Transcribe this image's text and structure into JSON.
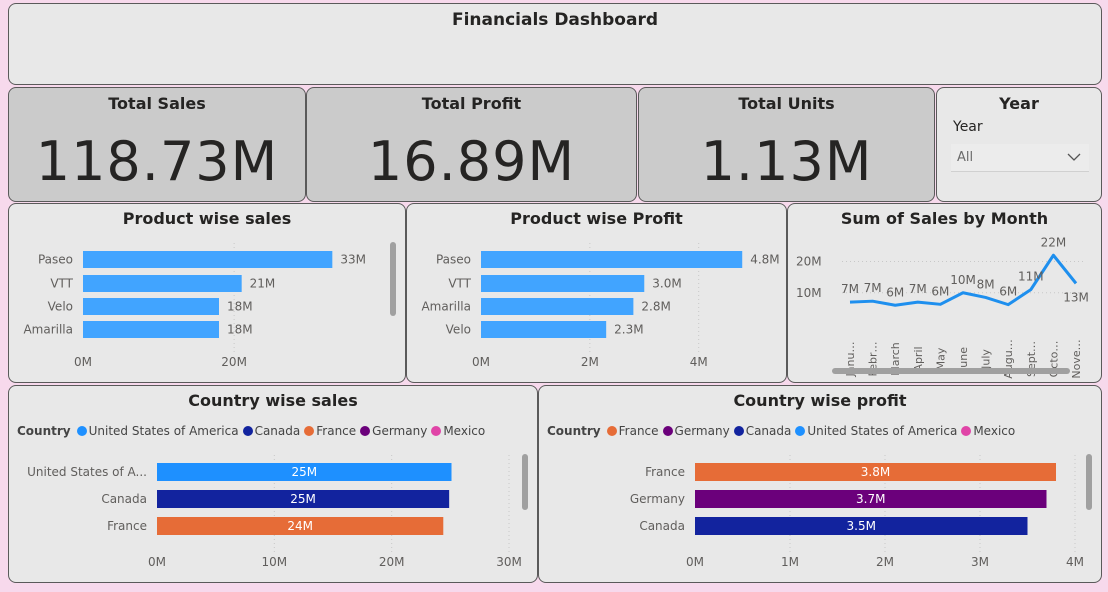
{
  "header": {
    "title": "Financials Dashboard"
  },
  "kpis": {
    "sales": {
      "label": "Total Sales",
      "value": "118.73M"
    },
    "profit": {
      "label": "Total Profit",
      "value": "16.89M"
    },
    "units": {
      "label": "Total Units",
      "value": "1.13M"
    }
  },
  "year_slicer": {
    "title": "Year",
    "label": "Year",
    "value": "All",
    "icon": "chevron-down-icon"
  },
  "chart_data": [
    {
      "id": "product_sales",
      "type": "bar",
      "orientation": "horizontal",
      "title": "Product wise sales",
      "categories": [
        "Paseo",
        "VTT",
        "Velo",
        "Amarilla"
      ],
      "values": [
        33,
        21,
        18,
        18
      ],
      "data_labels": [
        "33M",
        "21M",
        "18M",
        "18M"
      ],
      "xlim": [
        0,
        36
      ],
      "xticks": [
        0,
        20
      ],
      "xtick_labels": [
        "0M",
        "20M"
      ],
      "color": "#41a4ff"
    },
    {
      "id": "product_profit",
      "type": "bar",
      "orientation": "horizontal",
      "title": "Product wise Profit",
      "categories": [
        "Paseo",
        "VTT",
        "Amarilla",
        "Velo"
      ],
      "values": [
        4.8,
        3.0,
        2.8,
        2.3
      ],
      "data_labels": [
        "4.8M",
        "3.0M",
        "2.8M",
        "2.3M"
      ],
      "xlim": [
        0,
        5.2
      ],
      "xticks": [
        0,
        2,
        4
      ],
      "xtick_labels": [
        "0M",
        "2M",
        "4M"
      ],
      "color": "#41a4ff"
    },
    {
      "id": "sales_by_month",
      "type": "line",
      "title": "Sum of Sales by Month",
      "categories": [
        "Janu…",
        "Febr…",
        "March",
        "April",
        "May",
        "June",
        "July",
        "Augu…",
        "Sept…",
        "Octo…",
        "Nove…"
      ],
      "values": [
        7,
        7.3,
        6,
        7,
        6.3,
        10,
        8.5,
        6.2,
        11,
        22,
        13
      ],
      "data_labels": [
        "7M",
        "7M",
        "6M",
        "7M",
        "6M",
        "10M",
        "8M",
        "6M",
        "11M",
        "22M",
        "13M"
      ],
      "ylim": [
        0,
        24
      ],
      "yticks": [
        10,
        20
      ],
      "ytick_labels": [
        "10M",
        "20M"
      ],
      "color": "#1e8fee"
    },
    {
      "id": "country_sales",
      "type": "bar",
      "orientation": "horizontal",
      "title": "Country wise sales",
      "legend_title": "Country",
      "legend": [
        {
          "name": "United States of America",
          "color": "#1e90ff"
        },
        {
          "name": "Canada",
          "color": "#12239e"
        },
        {
          "name": "France",
          "color": "#e66c37"
        },
        {
          "name": "Germany",
          "color": "#6b007b"
        },
        {
          "name": "Mexico",
          "color": "#e044a7"
        }
      ],
      "categories": [
        "United States of A...",
        "Canada",
        "France"
      ],
      "values": [
        25.1,
        24.9,
        24.4
      ],
      "data_labels": [
        "25M",
        "25M",
        "24M"
      ],
      "colors": [
        "#1e90ff",
        "#12239e",
        "#e66c37"
      ],
      "xlim": [
        0,
        30
      ],
      "xticks": [
        0,
        10,
        20,
        30
      ],
      "xtick_labels": [
        "0M",
        "10M",
        "20M",
        "30M"
      ]
    },
    {
      "id": "country_profit",
      "type": "bar",
      "orientation": "horizontal",
      "title": "Country wise profit",
      "legend_title": "Country",
      "legend": [
        {
          "name": "France",
          "color": "#e66c37"
        },
        {
          "name": "Germany",
          "color": "#6b007b"
        },
        {
          "name": "Canada",
          "color": "#12239e"
        },
        {
          "name": "United States of America",
          "color": "#1e90ff"
        },
        {
          "name": "Mexico",
          "color": "#e044a7"
        }
      ],
      "categories": [
        "France",
        "Germany",
        "Canada"
      ],
      "values": [
        3.8,
        3.7,
        3.5
      ],
      "data_labels": [
        "3.8M",
        "3.7M",
        "3.5M"
      ],
      "colors": [
        "#e66c37",
        "#6b007b",
        "#12239e"
      ],
      "xlim": [
        0,
        4
      ],
      "xticks": [
        0,
        1,
        2,
        3,
        4
      ],
      "xtick_labels": [
        "0M",
        "1M",
        "2M",
        "3M",
        "4M"
      ]
    }
  ]
}
